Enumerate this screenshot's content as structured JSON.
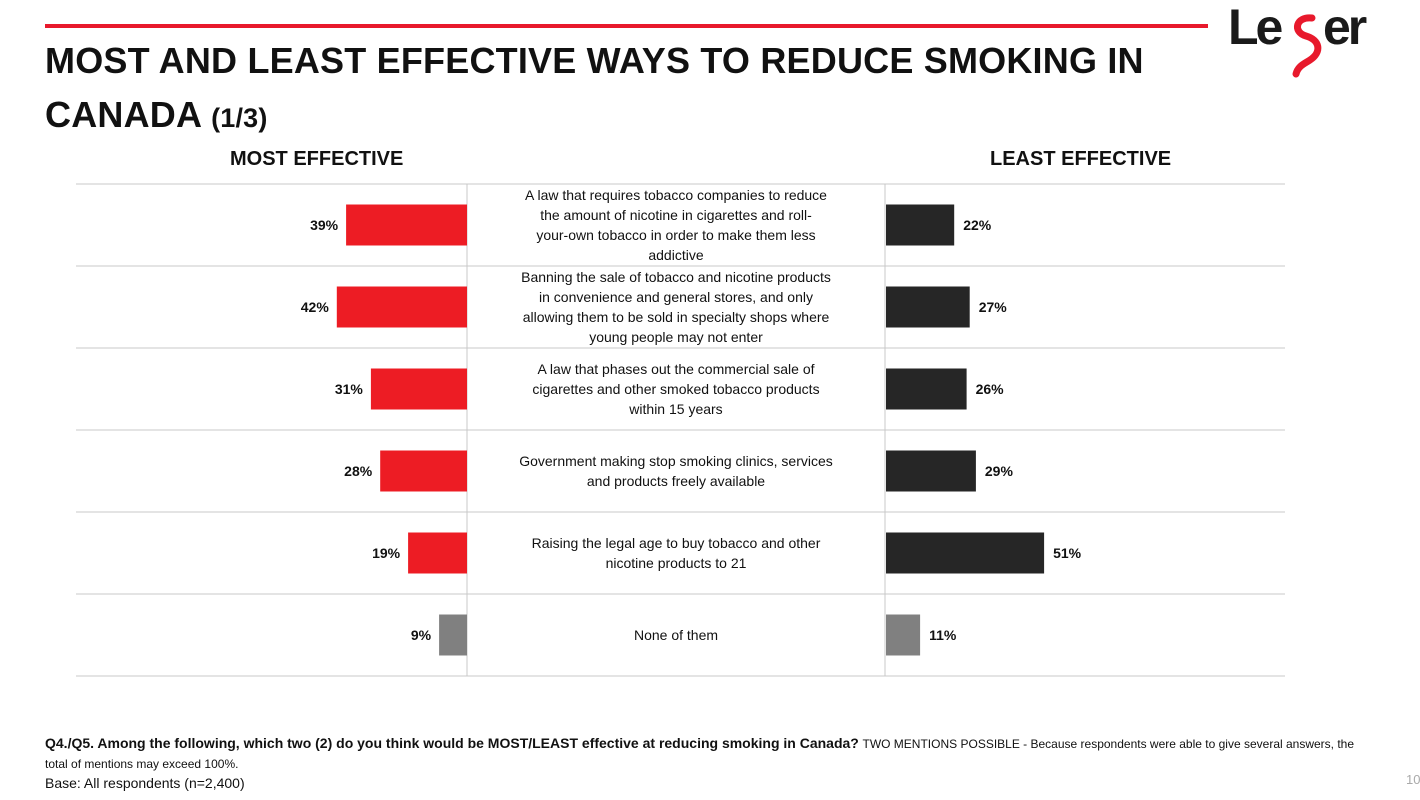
{
  "page": {
    "title_main": "MOST AND LEAST EFFECTIVE WAYS TO REDUCE SMOKING IN CANADA",
    "title_suffix": "(1/3)",
    "logo_text": "Leger",
    "page_number": "10"
  },
  "colors": {
    "accent_red": "#e8192c",
    "bar_red": "#ed1c24",
    "bar_dark": "#262626",
    "bar_gray": "#808080"
  },
  "chart_data": {
    "type": "bar",
    "orientation": "horizontal",
    "layout": "butterfly",
    "left_header": "MOST EFFECTIVE",
    "right_header": "LEAST EFFECTIVE",
    "categories": [
      "A law that requires tobacco companies to reduce the amount of nicotine in cigarettes and roll-your-own tobacco in order to make them less addictive",
      "Banning the sale of tobacco and nicotine products in convenience and general stores, and only allowing them to be sold in specialty shops where young people may not enter",
      "A law that phases out the commercial sale of cigarettes and other smoked tobacco products within 15 years",
      "Government making stop smoking clinics, services and products freely available",
      "Raising the legal age to buy tobacco and other nicotine products to 21",
      "None of them"
    ],
    "category_lines": [
      [
        "A law that requires tobacco companies to reduce",
        "the amount of nicotine in cigarettes and roll-",
        "your-own tobacco in order to make them less",
        "addictive"
      ],
      [
        "Banning the sale of tobacco and nicotine products",
        "in convenience and general stores, and only",
        "allowing them to be sold in specialty shops where",
        "young people may not enter"
      ],
      [
        "A law that phases out the commercial sale of",
        "cigarettes and other smoked tobacco products",
        "within 15 years"
      ],
      [
        "Government making stop smoking clinics, services",
        "and products freely available"
      ],
      [
        "Raising the legal age to buy tobacco and other",
        "nicotine products to 21"
      ],
      [
        "None of them"
      ]
    ],
    "series": [
      {
        "values": [
          39,
          42,
          31,
          28,
          19,
          9
        ],
        "labels": [
          "39%",
          "42%",
          "31%",
          "28%",
          "19%",
          "9%"
        ]
      },
      {
        "values": [
          22,
          27,
          26,
          29,
          51,
          11
        ],
        "labels": [
          "22%",
          "27%",
          "26%",
          "29%",
          "51%",
          "11%"
        ]
      }
    ],
    "unit": "%"
  },
  "footer": {
    "question": "Q4./Q5. Among the following, which two (2) do you think would be MOST/LEAST effective at reducing smoking in Canada?",
    "instruction": "TWO MENTIONS POSSIBLE - Because respondents were able to give several answers, the total of mentions may exceed 100%.",
    "base": "Base: All respondents (n=2,400)"
  }
}
